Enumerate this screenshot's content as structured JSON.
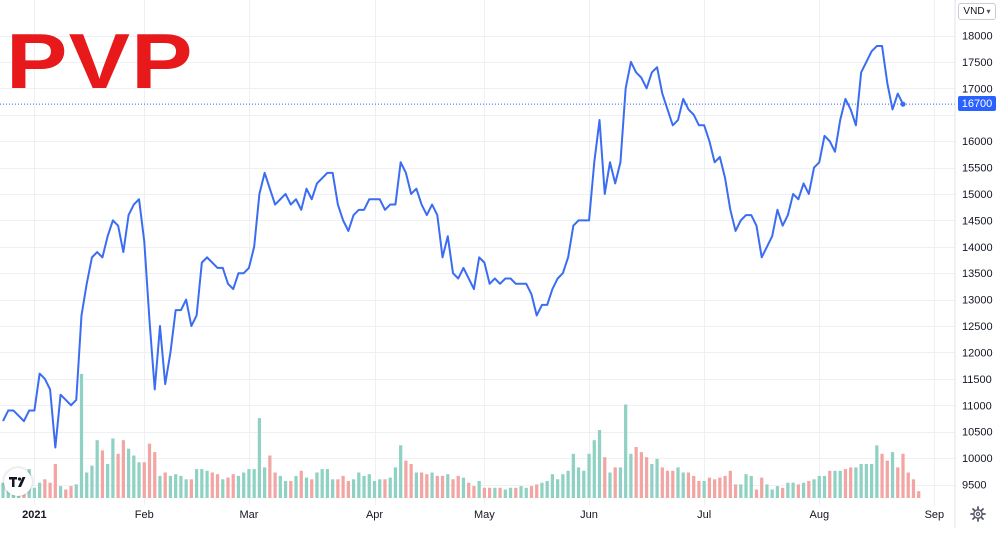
{
  "ticker": "PVP",
  "currency": "VND",
  "last_price_label": "16700",
  "colors": {
    "line": "#3b6df2",
    "vol_up": "#8fd1c3",
    "vol_down": "#f2a5a3",
    "ticker": "#e8191b",
    "price_tag": "#2962ff",
    "grid": "#eef0f3"
  },
  "icons": {
    "settings": "gear-icon",
    "logo": "tradingview-logo-icon",
    "dropdown": "chevron-down-icon"
  },
  "chart_data": {
    "type": "line",
    "title": "",
    "xlabel": "",
    "ylabel": "",
    "ylim": [
      9150,
      18300
    ],
    "y_ticks": [
      9500,
      10000,
      10500,
      11000,
      11500,
      12000,
      12500,
      13000,
      13500,
      14000,
      14500,
      15000,
      15500,
      16000,
      16500,
      17000,
      17500,
      18000
    ],
    "y_tick_labels": [
      "9500",
      "10000",
      "10500",
      "11000",
      "11500",
      "12000",
      "12500",
      "13000",
      "13500",
      "14000",
      "14500",
      "15000",
      "15500",
      "16000",
      "16500",
      "17000",
      "17500",
      "18000"
    ],
    "x_tick_labels": [
      "2021",
      "Feb",
      "Mar",
      "Apr",
      "May",
      "Jun",
      "Jul",
      "Aug",
      "Sep"
    ],
    "x_tick_index": [
      6,
      27,
      47,
      71,
      92,
      112,
      134,
      156,
      178
    ],
    "last_value": 16700,
    "series": [
      {
        "values": [
          10700,
          10900,
          10900,
          10800,
          10700,
          10900,
          10900,
          11600,
          11500,
          11300,
          10200,
          11200,
          11100,
          11000,
          11100,
          12700,
          13300,
          13800,
          13900,
          13800,
          14200,
          14500,
          14400,
          13900,
          14600,
          14800,
          14900,
          14100,
          12600,
          11300,
          12500,
          11400,
          12000,
          12800,
          12800,
          13000,
          12500,
          12700,
          13700,
          13800,
          13700,
          13600,
          13600,
          13300,
          13200,
          13500,
          13500,
          13600,
          14000,
          15000,
          15400,
          15100,
          14800,
          14900,
          15000,
          14800,
          14900,
          14700,
          15100,
          14900,
          15200,
          15300,
          15400,
          15400,
          14800,
          14500,
          14300,
          14600,
          14700,
          14700,
          14900,
          14900,
          14900,
          14700,
          14800,
          14800,
          15600,
          15400,
          15000,
          15100,
          14800,
          14600,
          14800,
          14600,
          13800,
          14200,
          13500,
          13400,
          13600,
          13400,
          13200,
          13800,
          13700,
          13300,
          13400,
          13300,
          13400,
          13400,
          13300,
          13300,
          13300,
          13100,
          12700,
          12900,
          12900,
          13200,
          13400,
          13500,
          13800,
          14400,
          14500,
          14500,
          14500,
          15600,
          16400,
          15000,
          15600,
          15200,
          15600,
          17000,
          17500,
          17300,
          17200,
          17000,
          17300,
          17400,
          16900,
          16600,
          16300,
          16400,
          16800,
          16600,
          16500,
          16300,
          16300,
          16000,
          15600,
          15700,
          15300,
          14700,
          14300,
          14500,
          14600,
          14600,
          14400,
          13800,
          14000,
          14200,
          14700,
          14400,
          14600,
          15000,
          14900,
          15200,
          15000,
          15500,
          15600,
          16100,
          16000,
          15800,
          16400,
          16800,
          16600,
          16300,
          17300,
          17500,
          17700,
          17800,
          17800,
          17100,
          16600,
          16900,
          16700
        ]
      },
      {
        "name": "Volume",
        "values": [
          0.9,
          0.6,
          0.4,
          0.6,
          1.1,
          1.7,
          0.6,
          0.9,
          1.1,
          0.9,
          2.0,
          0.7,
          0.5,
          0.7,
          0.8,
          7.3,
          1.5,
          1.9,
          3.4,
          2.8,
          2.0,
          3.5,
          2.6,
          3.4,
          2.9,
          2.5,
          2.1,
          2.1,
          3.2,
          2.7,
          1.3,
          1.5,
          1.3,
          1.4,
          1.3,
          1.1,
          1.1,
          1.7,
          1.7,
          1.6,
          1.5,
          1.4,
          1.1,
          1.2,
          1.4,
          1.3,
          1.5,
          1.7,
          1.7,
          4.7,
          1.8,
          2.5,
          1.5,
          1.3,
          1.0,
          1.0,
          1.3,
          1.6,
          1.2,
          1.1,
          1.5,
          1.7,
          1.7,
          1.1,
          1.1,
          1.3,
          1.0,
          1.1,
          1.5,
          1.3,
          1.4,
          1.0,
          1.1,
          1.1,
          1.2,
          1.8,
          3.1,
          2.2,
          2.0,
          1.5,
          1.5,
          1.4,
          1.5,
          1.3,
          1.3,
          1.4,
          1.1,
          1.3,
          1.2,
          0.9,
          0.7,
          1.0,
          0.6,
          0.6,
          0.6,
          0.6,
          0.5,
          0.6,
          0.6,
          0.7,
          0.6,
          0.7,
          0.8,
          0.9,
          1.0,
          1.4,
          1.1,
          1.4,
          1.6,
          2.6,
          1.8,
          1.6,
          2.6,
          3.4,
          4.0,
          2.4,
          1.5,
          1.8,
          1.8,
          5.5,
          2.6,
          3.0,
          2.7,
          2.4,
          2.0,
          2.3,
          1.8,
          1.6,
          1.6,
          1.8,
          1.5,
          1.5,
          1.3,
          1.0,
          1.0,
          1.2,
          1.1,
          1.2,
          1.3,
          1.6,
          0.8,
          0.8,
          1.4,
          1.3,
          0.5,
          1.2,
          0.8,
          0.5,
          0.7,
          0.6,
          0.9,
          0.9,
          0.8,
          0.9,
          1.0,
          1.1,
          1.3,
          1.3,
          1.6,
          1.6,
          1.6,
          1.7,
          1.8,
          1.8,
          2.0,
          2.0,
          2.0,
          3.1,
          2.6,
          2.2,
          2.7,
          1.8,
          2.6,
          1.5,
          1.1,
          0.4
        ]
      }
    ],
    "volume_direction": [
      "up",
      "up",
      "up",
      "up",
      "down",
      "up",
      "up",
      "up",
      "down",
      "down",
      "down",
      "up",
      "down",
      "down",
      "up",
      "up",
      "up",
      "up",
      "up",
      "down",
      "up",
      "up",
      "down",
      "down",
      "up",
      "up",
      "up",
      "down",
      "down",
      "down",
      "up",
      "down",
      "up",
      "up",
      "up",
      "up",
      "down",
      "up",
      "up",
      "up",
      "down",
      "down",
      "up",
      "down",
      "down",
      "up",
      "up",
      "up",
      "up",
      "up",
      "up",
      "down",
      "down",
      "up",
      "up",
      "down",
      "up",
      "down",
      "up",
      "down",
      "up",
      "up",
      "up",
      "up",
      "down",
      "down",
      "down",
      "up",
      "up",
      "up",
      "up",
      "up",
      "up",
      "down",
      "up",
      "up",
      "up",
      "down",
      "down",
      "up",
      "down",
      "down",
      "up",
      "down",
      "down",
      "up",
      "down",
      "down",
      "up",
      "down",
      "down",
      "up",
      "down",
      "down",
      "up",
      "down",
      "up",
      "up",
      "down",
      "up",
      "up",
      "down",
      "down",
      "up",
      "up",
      "up",
      "up",
      "up",
      "up",
      "up",
      "up",
      "up",
      "up",
      "up",
      "up",
      "down",
      "up",
      "down",
      "up",
      "up",
      "up",
      "down",
      "down",
      "down",
      "up",
      "up",
      "down",
      "down",
      "down",
      "up",
      "up",
      "down",
      "down",
      "down",
      "up",
      "down",
      "down",
      "down",
      "down",
      "down",
      "down",
      "up",
      "up",
      "up",
      "down",
      "down",
      "up",
      "up",
      "up",
      "down",
      "up",
      "up",
      "down",
      "up",
      "down",
      "up",
      "up",
      "up",
      "down",
      "up",
      "up",
      "down",
      "down",
      "up",
      "up",
      "up",
      "up",
      "up",
      "down",
      "down",
      "up",
      "down",
      "down"
    ]
  }
}
